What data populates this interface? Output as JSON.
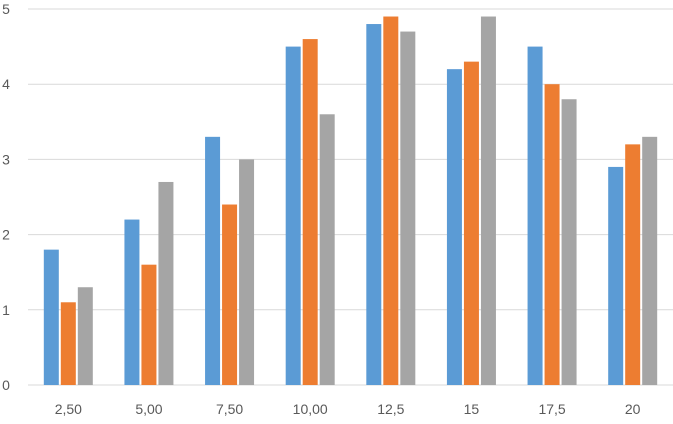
{
  "chart_data": {
    "type": "bar",
    "categories": [
      "2,50",
      "5,00",
      "7,50",
      "10,00",
      "12,5",
      "15",
      "17,5",
      "20"
    ],
    "series": [
      {
        "values": [
          1.8,
          2.2,
          3.3,
          4.5,
          4.8,
          4.2,
          4.5,
          2.9
        ]
      },
      {
        "values": [
          1.1,
          1.6,
          2.4,
          4.6,
          4.9,
          4.3,
          4.0,
          3.2
        ]
      },
      {
        "values": [
          1.3,
          2.7,
          3.0,
          3.6,
          4.7,
          4.9,
          3.8,
          3.3
        ]
      }
    ],
    "y_ticks": [
      "0",
      "1",
      "2",
      "3",
      "4",
      "5"
    ],
    "ylim": [
      0,
      5
    ],
    "grid": true,
    "colors": [
      "#5B9BD5",
      "#ED7D31",
      "#A5A5A5"
    ],
    "grid_color": "#d9d9d9"
  }
}
